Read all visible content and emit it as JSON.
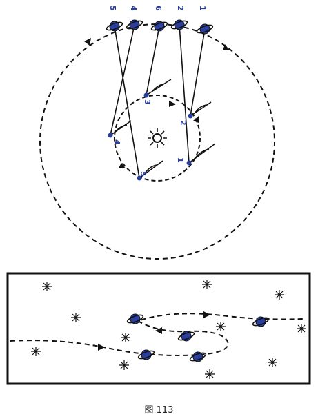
{
  "caption": "图 113",
  "colors": {
    "planet": "#2a3f9d",
    "ink": "#111111"
  },
  "top_labels": [
    "5",
    "4",
    "6",
    "2",
    "1"
  ],
  "inner_labels": [
    "3",
    "2",
    "4",
    "1",
    "5"
  ],
  "icons": {
    "sun": "sun-icon",
    "planet": "saturn-planet-icon",
    "star": "star-icon"
  }
}
